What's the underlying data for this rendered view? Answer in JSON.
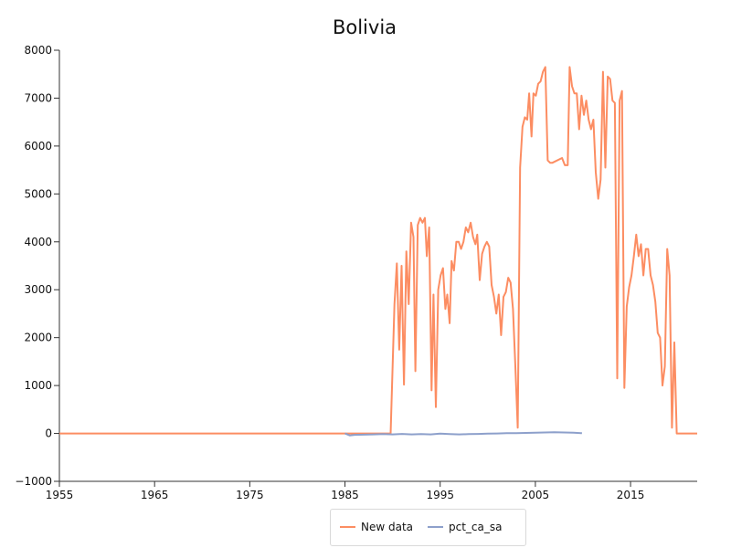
{
  "chart_data": {
    "type": "line",
    "title": "Bolivia",
    "xlabel": "",
    "ylabel": "",
    "xlim": [
      1955,
      2022
    ],
    "ylim": [
      -1000,
      8000
    ],
    "x_ticks": [
      1955,
      1965,
      1975,
      1985,
      1995,
      2005,
      2015
    ],
    "y_ticks": [
      -1000,
      0,
      1000,
      2000,
      3000,
      4000,
      5000,
      6000,
      7000,
      8000
    ],
    "grid": false,
    "legend_position": "bottom-center",
    "series": [
      {
        "name": "New data",
        "color": "#fc8d62",
        "points": [
          [
            1955,
            0
          ],
          [
            1989.8,
            0
          ],
          [
            1990.2,
            2700
          ],
          [
            1990.45,
            3550
          ],
          [
            1990.7,
            1750
          ],
          [
            1990.95,
            3500
          ],
          [
            1991.2,
            1020
          ],
          [
            1991.45,
            3800
          ],
          [
            1991.7,
            2700
          ],
          [
            1991.95,
            4400
          ],
          [
            1992.2,
            4100
          ],
          [
            1992.4,
            1300
          ],
          [
            1992.65,
            4350
          ],
          [
            1992.9,
            4500
          ],
          [
            1993.15,
            4400
          ],
          [
            1993.4,
            4500
          ],
          [
            1993.6,
            3700
          ],
          [
            1993.85,
            4300
          ],
          [
            1994.1,
            900
          ],
          [
            1994.3,
            2900
          ],
          [
            1994.55,
            550
          ],
          [
            1994.8,
            3000
          ],
          [
            1995.05,
            3300
          ],
          [
            1995.3,
            3450
          ],
          [
            1995.55,
            2600
          ],
          [
            1995.75,
            2900
          ],
          [
            1996.0,
            2300
          ],
          [
            1996.2,
            3600
          ],
          [
            1996.45,
            3400
          ],
          [
            1996.7,
            4000
          ],
          [
            1996.95,
            4000
          ],
          [
            1997.2,
            3850
          ],
          [
            1997.45,
            4000
          ],
          [
            1997.7,
            4300
          ],
          [
            1997.95,
            4200
          ],
          [
            1998.2,
            4400
          ],
          [
            1998.45,
            4100
          ],
          [
            1998.7,
            3950
          ],
          [
            1998.9,
            4150
          ],
          [
            1999.15,
            3200
          ],
          [
            1999.4,
            3750
          ],
          [
            1999.65,
            3900
          ],
          [
            1999.9,
            4000
          ],
          [
            2000.15,
            3900
          ],
          [
            2000.4,
            3100
          ],
          [
            2000.65,
            2850
          ],
          [
            2000.9,
            2500
          ],
          [
            2001.15,
            2900
          ],
          [
            2001.4,
            2050
          ],
          [
            2001.65,
            2850
          ],
          [
            2001.9,
            2950
          ],
          [
            2002.15,
            3250
          ],
          [
            2002.4,
            3150
          ],
          [
            2002.65,
            2600
          ],
          [
            2002.9,
            1400
          ],
          [
            2003.15,
            120
          ],
          [
            2003.4,
            5550
          ],
          [
            2003.65,
            6400
          ],
          [
            2003.9,
            6600
          ],
          [
            2004.15,
            6550
          ],
          [
            2004.35,
            7100
          ],
          [
            2004.6,
            6200
          ],
          [
            2004.8,
            7100
          ],
          [
            2005.05,
            7050
          ],
          [
            2005.3,
            7300
          ],
          [
            2005.55,
            7350
          ],
          [
            2005.8,
            7550
          ],
          [
            2006.05,
            7650
          ],
          [
            2006.3,
            5700
          ],
          [
            2006.55,
            5650
          ],
          [
            2006.8,
            5650
          ],
          [
            2007.8,
            5750
          ],
          [
            2008.1,
            5600
          ],
          [
            2008.4,
            5600
          ],
          [
            2008.6,
            7650
          ],
          [
            2008.85,
            7250
          ],
          [
            2009.1,
            7100
          ],
          [
            2009.35,
            7100
          ],
          [
            2009.6,
            6350
          ],
          [
            2009.85,
            7050
          ],
          [
            2010.1,
            6650
          ],
          [
            2010.35,
            6950
          ],
          [
            2010.6,
            6550
          ],
          [
            2010.85,
            6350
          ],
          [
            2011.1,
            6550
          ],
          [
            2011.35,
            5450
          ],
          [
            2011.6,
            4900
          ],
          [
            2011.85,
            5300
          ],
          [
            2012.1,
            7550
          ],
          [
            2012.35,
            5550
          ],
          [
            2012.6,
            7450
          ],
          [
            2012.85,
            7400
          ],
          [
            2013.1,
            6950
          ],
          [
            2013.35,
            6900
          ],
          [
            2013.6,
            1150
          ],
          [
            2013.85,
            6950
          ],
          [
            2014.1,
            7150
          ],
          [
            2014.35,
            950
          ],
          [
            2014.6,
            2650
          ],
          [
            2014.85,
            3050
          ],
          [
            2015.1,
            3300
          ],
          [
            2015.35,
            3700
          ],
          [
            2015.6,
            4150
          ],
          [
            2015.85,
            3700
          ],
          [
            2016.1,
            3950
          ],
          [
            2016.35,
            3300
          ],
          [
            2016.6,
            3850
          ],
          [
            2016.85,
            3850
          ],
          [
            2017.1,
            3300
          ],
          [
            2017.35,
            3100
          ],
          [
            2017.6,
            2750
          ],
          [
            2017.85,
            2100
          ],
          [
            2018.1,
            2000
          ],
          [
            2018.35,
            1000
          ],
          [
            2018.6,
            1400
          ],
          [
            2018.85,
            3850
          ],
          [
            2019.1,
            3300
          ],
          [
            2019.35,
            120
          ],
          [
            2019.6,
            1900
          ],
          [
            2019.85,
            0
          ],
          [
            2022,
            0
          ]
        ]
      },
      {
        "name": "pct_ca_sa",
        "color": "#8da0cb",
        "points": [
          [
            1985,
            0
          ],
          [
            1985.5,
            -40
          ],
          [
            1986,
            -30
          ],
          [
            1987,
            -25
          ],
          [
            1988,
            -20
          ],
          [
            1989,
            -15
          ],
          [
            1990,
            -20
          ],
          [
            1991,
            -10
          ],
          [
            1992,
            -20
          ],
          [
            1993,
            -15
          ],
          [
            1994,
            -20
          ],
          [
            1995,
            -5
          ],
          [
            1996,
            -15
          ],
          [
            1997,
            -20
          ],
          [
            1998,
            -15
          ],
          [
            1999,
            -10
          ],
          [
            2000,
            -5
          ],
          [
            2001,
            0
          ],
          [
            2002,
            5
          ],
          [
            2003,
            5
          ],
          [
            2004,
            10
          ],
          [
            2005,
            15
          ],
          [
            2006,
            20
          ],
          [
            2007,
            25
          ],
          [
            2008,
            20
          ],
          [
            2009,
            15
          ],
          [
            2009.9,
            5
          ]
        ]
      }
    ]
  }
}
